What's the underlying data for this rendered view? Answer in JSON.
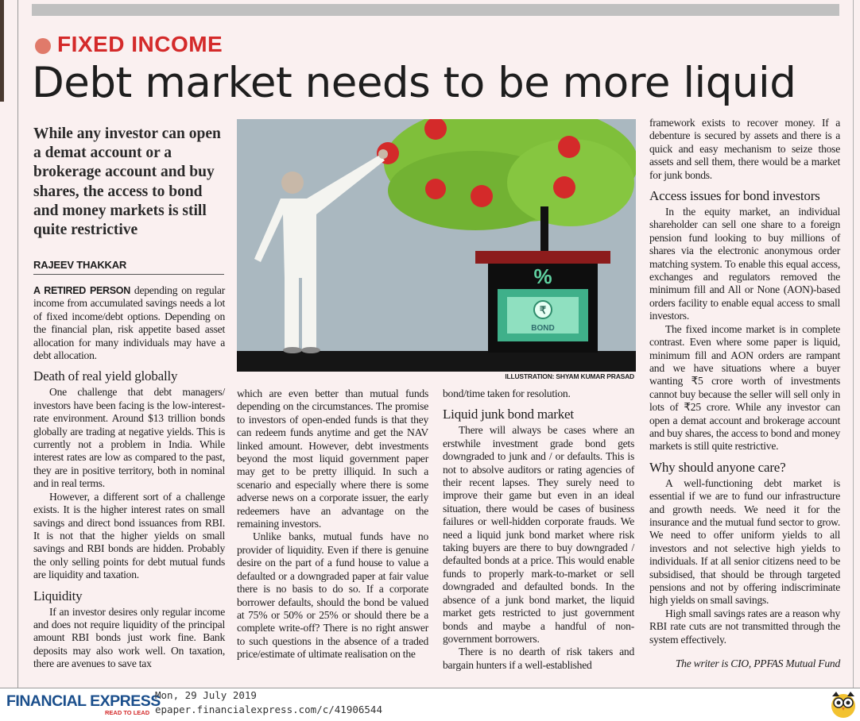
{
  "section": "FIXED INCOME",
  "headline": "Debt market needs to be more liquid",
  "standfirst": "While any investor can open a demat account or a brokerage account and buy shares, the access to bond and money markets is still quite restrictive",
  "author": "RAJEEV THAKKAR",
  "illustration": {
    "caption": "ILLUSTRATION: SHYAM KUMAR PRASAD",
    "percent_label": "%",
    "bond_label": "BOND",
    "rupee_symbol": "₹"
  },
  "colors": {
    "section_red": "#d42a2a",
    "dot": "#e07a6a",
    "brand_blue": "#1b4f8c",
    "paper": "#faf0f0"
  },
  "columns": {
    "c1": {
      "lead_runin": "A RETIRED PERSON",
      "lead_text": " depending on regular income from accumulated savings needs a lot of fixed income/debt options. Depending on the financial plan, risk appetite based asset allocation for many individuals may have a debt allocation.",
      "sub1": "Death of real yield globally",
      "p1": "One challenge that debt managers/ investors have been facing is the low-interest-rate environment. Around $13 trillion bonds globally are trading at negative yields. This is currently not a problem in India. While interest rates are low as compared to the past, they are in positive territory, both in nominal and in real terms.",
      "p2": "However, a different sort of a challenge exists. It is the higher interest rates on small savings and direct bond issuances from RBI. It is not that the higher yields on small savings and RBI bonds are hidden. Probably the only selling points for debt mutual funds are liquidity and taxation.",
      "sub2": "Liquidity",
      "p3": "If an investor desires only regular income and does not require liquidity of the principal amount RBI bonds just work fine. Bank deposits may also work well. On taxation, there are avenues to save tax"
    },
    "c2": {
      "p1": "which are even better than mutual funds depending on the circumstances. The promise to investors of open-ended funds is that they can redeem funds anytime and get the NAV linked amount. However, debt investments beyond the most liquid government paper may get to be pretty illiquid. In such a scenario and especially where there is some adverse news on a corporate issuer, the early redeemers have an advantage on the remaining investors.",
      "p2": "Unlike banks, mutual funds have no provider of liquidity. Even if there is genuine desire on the part of a fund house to value a defaulted or a downgraded paper at fair value there is no basis to do so. If a corporate borrower defaults, should the bond be valued at 75% or 50% or 25% or should there be a complete write-off? There is no right answer to such questions in the absence of a traded price/estimate of ultimate realisation on the"
    },
    "c3": {
      "p0": "bond/time taken for resolution.",
      "sub1": "Liquid junk bond market",
      "p1": "There will always be cases where an erstwhile investment grade bond gets downgraded to junk and / or defaults. This is not to absolve auditors or rating agencies of their recent lapses. They surely need to improve their game but even in an ideal situation, there would be cases of business failures or well-hidden corporate frauds. We need a liquid junk bond market where risk taking buyers are there to buy downgraded / defaulted bonds at a price. This would enable funds to properly mark-to-market or sell downgraded and defaulted bonds. In the absence of a junk bond market, the liquid market gets restricted to just government bonds and maybe a handful of non-government borrowers.",
      "p2": "There is no dearth of risk takers and bargain hunters if a well-established"
    },
    "c4": {
      "p0": "framework exists to recover money. If a debenture is secured by assets and there is a quick and easy mechanism to seize those assets and sell them, there would be a market for junk bonds.",
      "sub1": "Access issues for bond investors",
      "p1": "In the equity market, an individual shareholder can sell one share to a foreign pension fund looking to buy millions of shares via the electronic anonymous order matching system. To enable this equal access, exchanges and regulators removed the minimum fill and All or None (AON)-based orders facility to enable equal access to small investors.",
      "p2": "The fixed income market is in complete contrast. Even where some paper is liquid, minimum fill and AON orders are rampant and we have situations where a buyer wanting ₹5 crore worth of investments cannot buy because the seller will sell only in lots of ₹25 crore. While any investor can open a demat account and brokerage account and buy shares, the access to bond and money markets is still quite restrictive.",
      "sub2": "Why should anyone care?",
      "p3": "A well-functioning debt market is essential if we are to fund our infrastructure and growth needs. We need it for the insurance and the mutual fund sector to grow. We need to offer uniform yields to all investors and not selective high yields to individuals. If at all senior citizens need to be subsidised, that should be through targeted pensions and not by offering indiscriminate high yields on small savings.",
      "p4": "High small savings rates are a reason why RBI rate cuts are not transmitted through the system effectively.",
      "signoff": "The writer is CIO, PPFAS Mutual Fund"
    }
  },
  "footer": {
    "logo": "FINANCIAL EXPRESS",
    "tagline": "READ TO LEAD",
    "date": "Mon, 29 July 2019",
    "url": "epaper.financialexpress.com/c/41906544",
    "mascot_icon": "owl-icon"
  }
}
